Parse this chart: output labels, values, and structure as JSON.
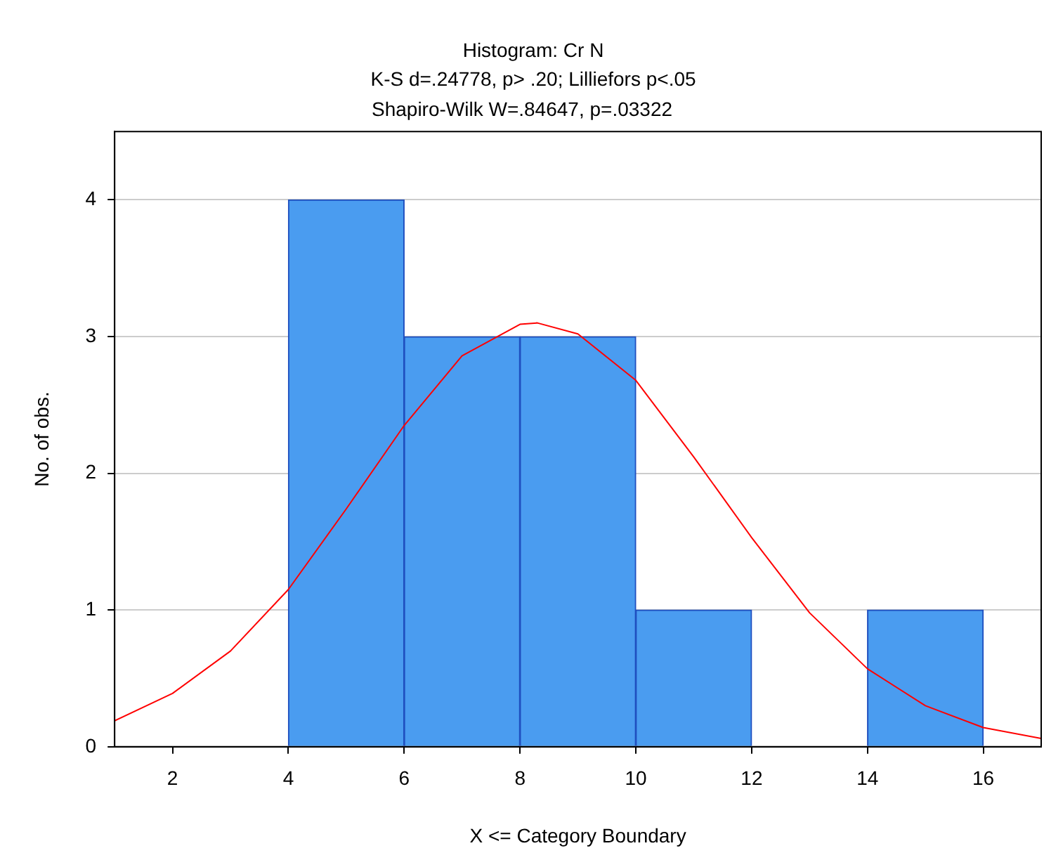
{
  "chart_data": {
    "type": "histogram",
    "title": "Histogram: Cr N",
    "subtitle": "K-S d=.24778, p> .20; Lilliefors p<.05",
    "annotations": [
      "Shapiro-Wilk W=.84647, p=.03322"
    ],
    "xlabel": "X <= Category Boundary",
    "ylabel": "No. of obs.",
    "bins": [
      4,
      6,
      8,
      10,
      12,
      14,
      16
    ],
    "values": [
      4,
      3,
      3,
      1,
      0,
      1
    ],
    "color": "#4a9cf0",
    "series": [
      {
        "type": "line",
        "color": "#ff0000",
        "x": [
          1,
          2,
          3,
          4,
          5,
          6,
          7,
          8,
          8.3,
          9,
          10,
          11,
          12,
          13,
          14,
          15,
          16,
          17
        ],
        "values": [
          0.19,
          0.39,
          0.7,
          1.15,
          1.74,
          2.35,
          2.86,
          3.09,
          3.1,
          3.02,
          2.68,
          2.12,
          1.53,
          0.98,
          0.57,
          0.3,
          0.14,
          0.06
        ]
      }
    ],
    "xlim": [
      1,
      17
    ],
    "xticks": [
      2,
      4,
      6,
      8,
      10,
      12,
      14,
      16
    ],
    "ylim": [
      0,
      4.5
    ],
    "yticks": [
      0,
      1,
      2,
      3,
      4
    ],
    "grid": "y",
    "legend": false,
    "marker": "none",
    "line_style": "solid"
  }
}
